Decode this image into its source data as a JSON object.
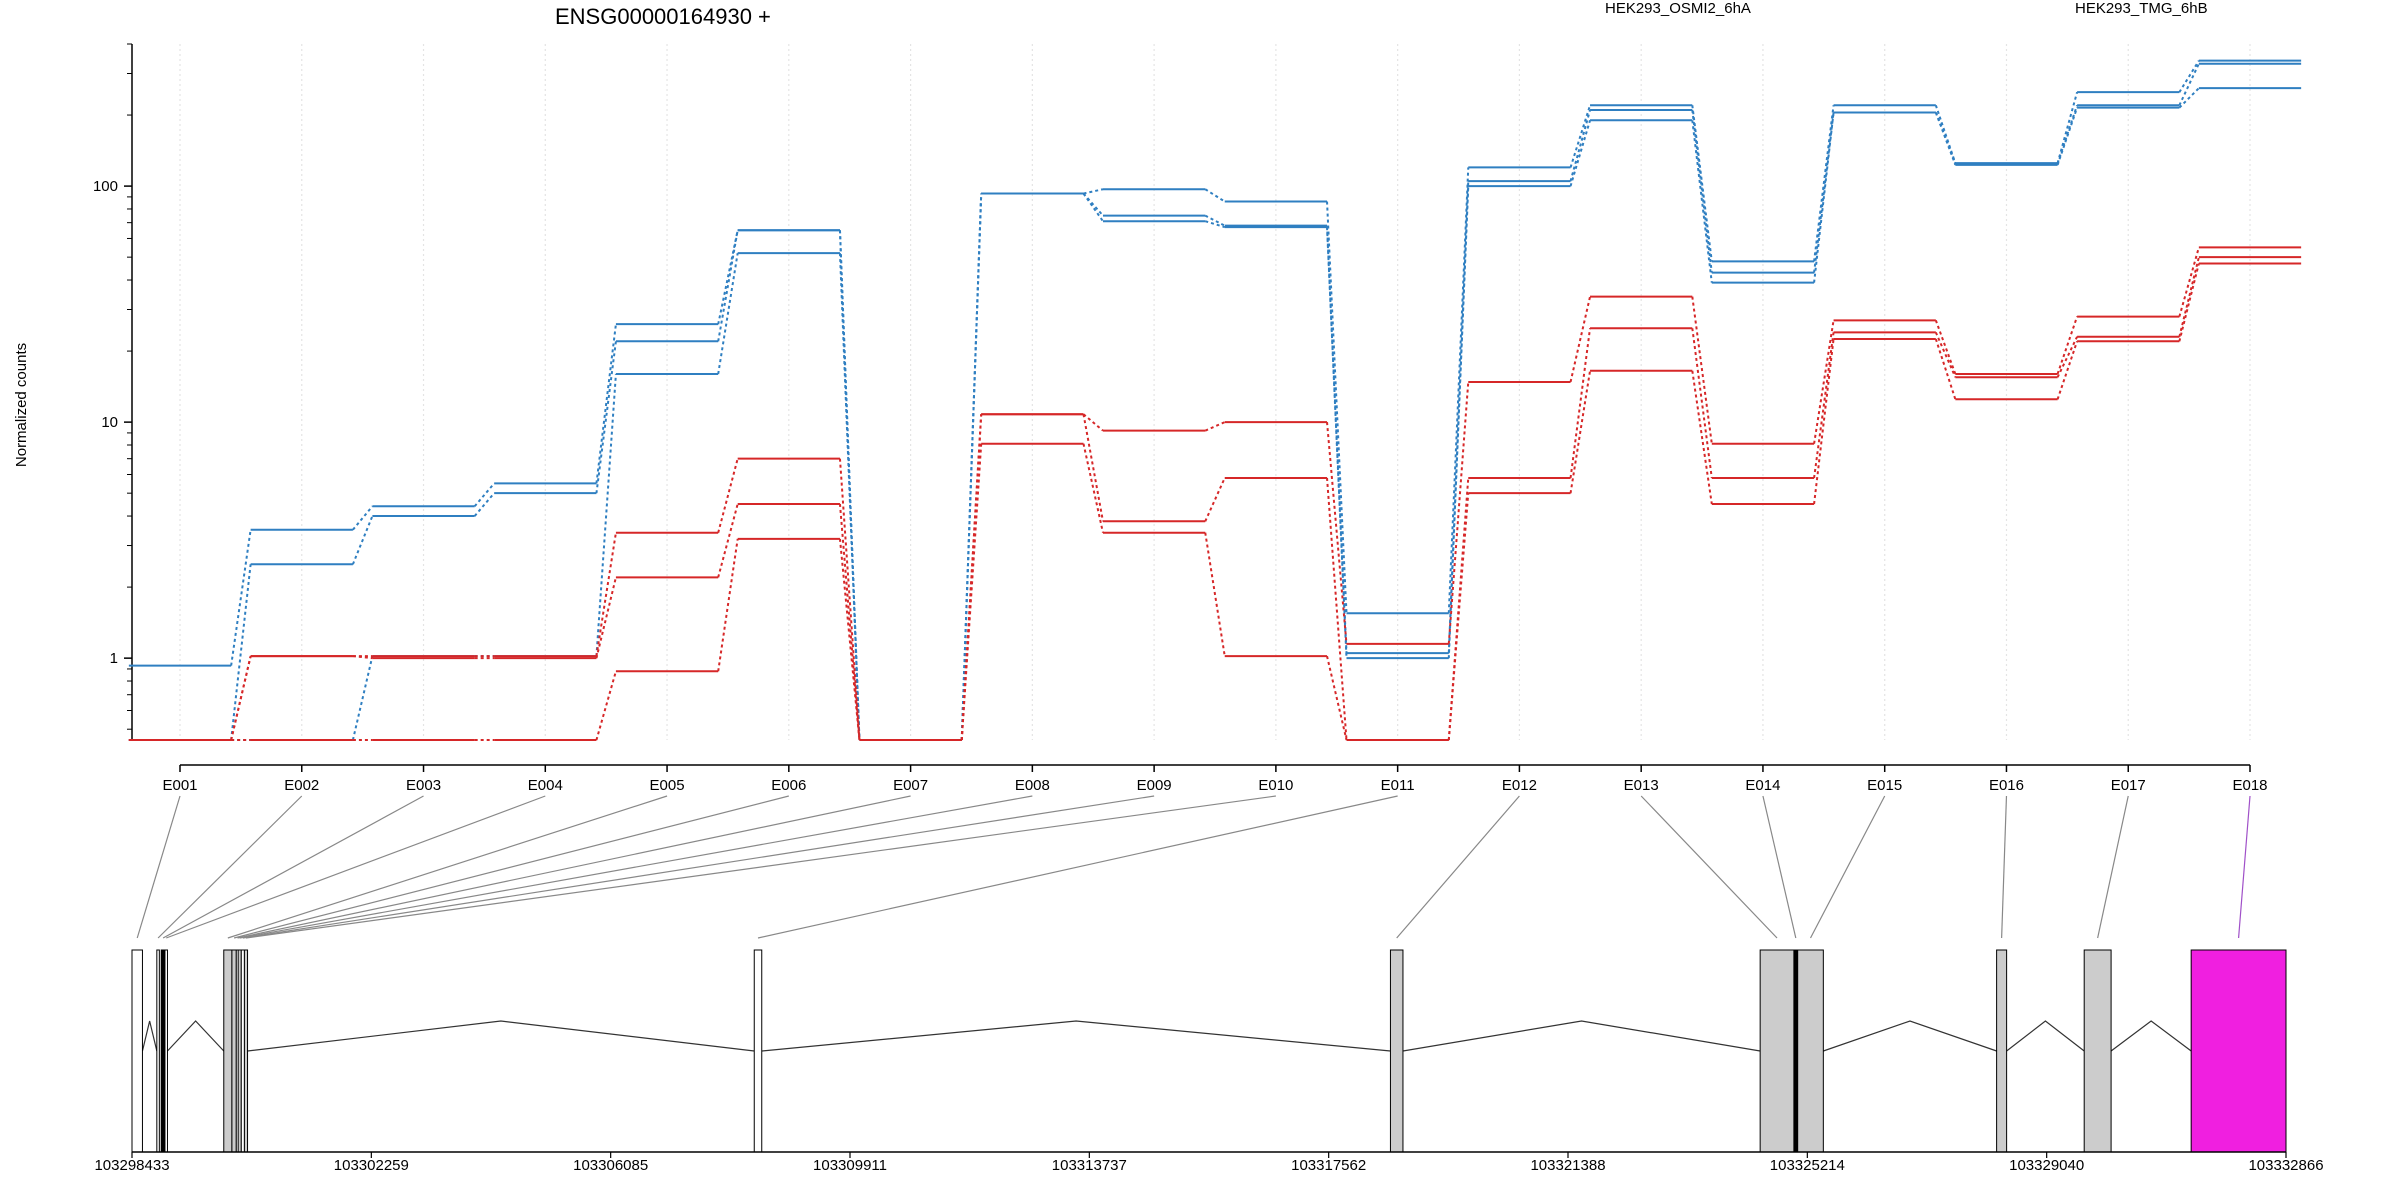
{
  "chart_data": {
    "type": "line",
    "title": "ENSG00000164930 +",
    "ylabel": "Normalized counts",
    "xlabel": "",
    "y_scale": "log",
    "ylim": [
      0.45,
      400
    ],
    "y_ticks": [
      1,
      10,
      100
    ],
    "y_tick_labels": [
      "1",
      "10",
      "100"
    ],
    "grid": "vertical dotted lines at exon positions",
    "legend_placement": "top-right",
    "categories": [
      "E001",
      "E002",
      "E003",
      "E004",
      "E005",
      "E006",
      "E007",
      "E008",
      "E009",
      "E010",
      "E011",
      "E012",
      "E013",
      "E014",
      "E015",
      "E016",
      "E017",
      "E018"
    ],
    "colors": {
      "HEK293_OSMI2_6hA": "#d62728",
      "HEK293_TMG_6hB": "#2f7fc1",
      "gene_model": "#cccccc",
      "highlight": "#f01fe0"
    },
    "legend": [
      {
        "label": "HEK293_OSMI2_6hA",
        "color": "#d62728"
      },
      {
        "label": "HEK293_TMG_6hB",
        "color": "#2f7fc1"
      }
    ],
    "series": [
      {
        "group": "HEK293_TMG_6hB",
        "values": [
          0.93,
          3.5,
          4.4,
          5.5,
          26,
          65,
          0.45,
          93,
          97,
          86,
          1.55,
          120,
          220,
          48,
          220,
          125,
          250,
          340
        ]
      },
      {
        "group": "HEK293_TMG_6hB",
        "values": [
          0.45,
          2.5,
          4.0,
          5.0,
          22,
          65,
          0.45,
          93,
          75,
          68,
          1.05,
          105,
          210,
          43,
          205,
          125,
          220,
          330
        ]
      },
      {
        "group": "HEK293_TMG_6hB",
        "values": [
          0.45,
          0.45,
          1.02,
          1.02,
          16,
          52,
          0.45,
          93,
          71,
          67,
          1.0,
          100,
          190,
          39,
          205,
          123,
          215,
          260
        ]
      },
      {
        "group": "HEK293_OSMI2_6hA",
        "values": [
          0.45,
          1.02,
          1.02,
          1.02,
          3.4,
          7.0,
          0.45,
          10.8,
          9.2,
          10.0,
          1.15,
          14.8,
          34,
          8.1,
          27,
          16,
          28,
          55
        ]
      },
      {
        "group": "HEK293_OSMI2_6hA",
        "values": [
          0.45,
          1.02,
          1.0,
          1.0,
          2.2,
          4.5,
          0.45,
          10.8,
          3.8,
          5.8,
          0.45,
          5.8,
          25,
          5.8,
          24,
          15.5,
          23,
          50
        ]
      },
      {
        "group": "HEK293_OSMI2_6hA",
        "values": [
          0.45,
          0.45,
          0.45,
          0.45,
          0.88,
          3.2,
          0.45,
          8.1,
          3.4,
          1.02,
          0.45,
          5.0,
          16.5,
          4.5,
          22.5,
          12.5,
          22,
          47
        ]
      }
    ],
    "genomic_axis": {
      "tick_labels": [
        "103298433",
        "103302259",
        "103306085",
        "103309911",
        "103313737",
        "103317562",
        "103321388",
        "103325214",
        "103329040",
        "103332866"
      ],
      "start": 103298433,
      "end": 103332866
    },
    "exons": [
      {
        "id": "E001",
        "start": 103298433,
        "end": 103298600,
        "fill": "#ffffff"
      },
      {
        "id": "E002",
        "start": 103298830,
        "end": 103298870,
        "fill": "#ffffff"
      },
      {
        "id": "E003",
        "start": 103298900,
        "end": 103298960,
        "fill": "#000000"
      },
      {
        "id": "E004",
        "start": 103298960,
        "end": 103299000,
        "fill": "#ffffff"
      },
      {
        "id": "E005",
        "start": 103299900,
        "end": 103300030,
        "fill": "#cccccc"
      },
      {
        "id": "E006",
        "start": 103300030,
        "end": 103300100,
        "fill": "#cccccc"
      },
      {
        "id": "E007",
        "start": 103300100,
        "end": 103300130,
        "fill": "#ffffff"
      },
      {
        "id": "E008",
        "start": 103300130,
        "end": 103300180,
        "fill": "#cccccc"
      },
      {
        "id": "E009",
        "start": 103300180,
        "end": 103300230,
        "fill": "#ffffff"
      },
      {
        "id": "E010",
        "start": 103300230,
        "end": 103300280,
        "fill": "#cccccc"
      },
      {
        "id": "E011",
        "start": 103308380,
        "end": 103308500,
        "fill": "#ffffff"
      },
      {
        "id": "E012",
        "start": 103318550,
        "end": 103318750,
        "fill": "#cccccc"
      },
      {
        "id": "E013",
        "start": 103324460,
        "end": 103325000,
        "fill": "#cccccc"
      },
      {
        "id": "E014",
        "start": 103325000,
        "end": 103325060,
        "fill": "#000000"
      },
      {
        "id": "E015",
        "start": 103325060,
        "end": 103325470,
        "fill": "#cccccc"
      },
      {
        "id": "E016",
        "start": 103328240,
        "end": 103328400,
        "fill": "#cccccc"
      },
      {
        "id": "E017",
        "start": 103329640,
        "end": 103330070,
        "fill": "#cccccc"
      },
      {
        "id": "E018",
        "start": 103331350,
        "end": 103332866,
        "fill": "#f01fe0"
      }
    ],
    "introns": [
      [
        103298600,
        103298830
      ],
      [
        103299000,
        103299900
      ],
      [
        103300280,
        103308380
      ],
      [
        103308500,
        103318550
      ],
      [
        103318750,
        103324460
      ],
      [
        103325470,
        103328240
      ],
      [
        103328400,
        103329640
      ],
      [
        103330070,
        103331350
      ]
    ],
    "highlight_exon": "E018"
  }
}
